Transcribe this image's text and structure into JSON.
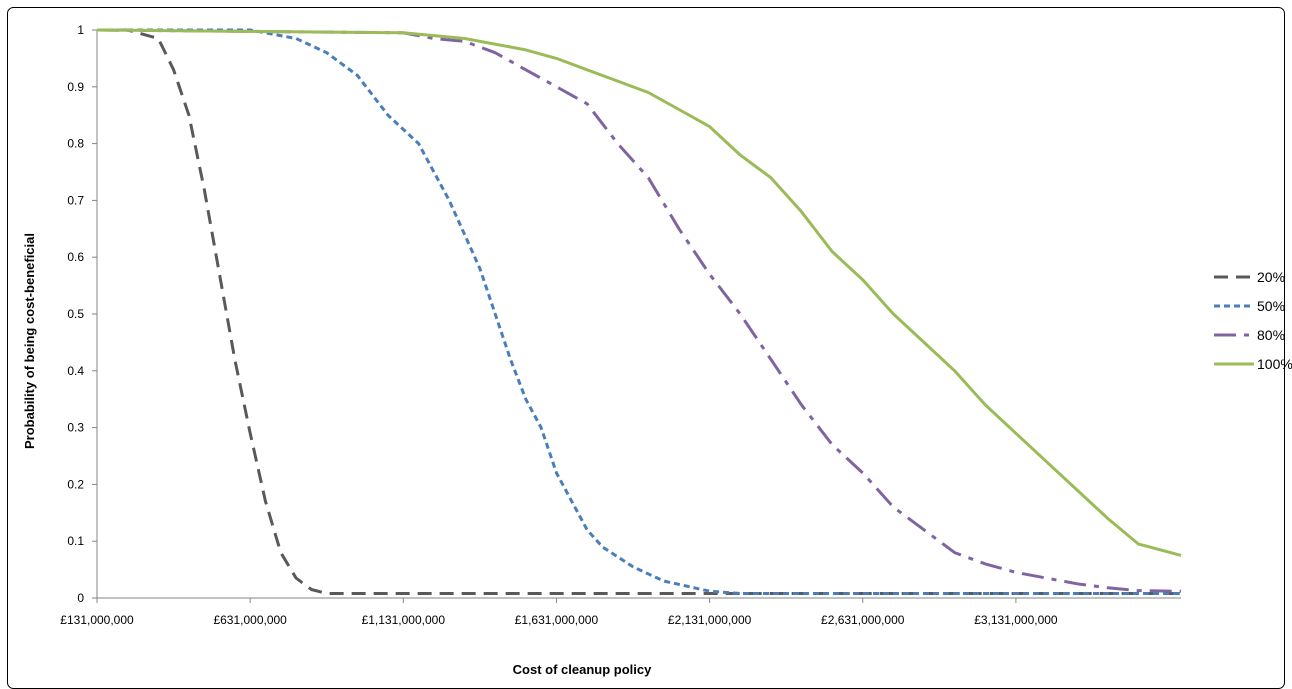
{
  "chart_data": {
    "type": "line",
    "title": "",
    "xlabel": "Cost of cleanup policy",
    "ylabel": "Probability of being cost-beneficial",
    "xlim": [
      131000000,
      3670000000
    ],
    "ylim": [
      0,
      1
    ],
    "x_ticks": [
      131000000,
      631000000,
      1131000000,
      1631000000,
      2131000000,
      2631000000,
      3131000000
    ],
    "x_tick_labels": [
      "£131,000,000",
      "£631,000,000",
      "£1,131,000,000",
      "£1,631,000,000",
      "£2,131,000,000",
      "£2,631,000,000",
      "£3,131,000,000"
    ],
    "y_ticks": [
      0,
      0.1,
      0.2,
      0.3,
      0.4,
      0.5,
      0.6,
      0.7,
      0.8,
      0.9,
      1
    ],
    "y_tick_labels": [
      "0",
      "0.1",
      "0.2",
      "0.3",
      "0.4",
      "0.5",
      "0.6",
      "0.7",
      "0.8",
      "0.9",
      "1"
    ],
    "grid": false,
    "legend_position": "right",
    "series": [
      {
        "name": "20%",
        "color": "#595959",
        "dash": "long-dash",
        "x": [
          131000000,
          231000000,
          331000000,
          381000000,
          431000000,
          481000000,
          531000000,
          581000000,
          631000000,
          681000000,
          731000000,
          781000000,
          831000000,
          881000000,
          1131000000,
          1631000000,
          2131000000,
          2631000000,
          3131000000,
          3670000000
        ],
        "y": [
          1.0,
          1.0,
          0.985,
          0.93,
          0.85,
          0.72,
          0.57,
          0.42,
          0.29,
          0.17,
          0.08,
          0.035,
          0.015,
          0.008,
          0.008,
          0.008,
          0.008,
          0.008,
          0.008,
          0.008
        ]
      },
      {
        "name": "50%",
        "color": "#4a7ebb",
        "dash": "short-dash",
        "x": [
          131000000,
          631000000,
          781000000,
          881000000,
          981000000,
          1081000000,
          1181000000,
          1231000000,
          1281000000,
          1331000000,
          1381000000,
          1431000000,
          1481000000,
          1531000000,
          1581000000,
          1631000000,
          1681000000,
          1731000000,
          1781000000,
          1881000000,
          1981000000,
          2081000000,
          2131000000,
          2231000000,
          2631000000,
          3131000000,
          3670000000
        ],
        "y": [
          1.0,
          1.0,
          0.985,
          0.96,
          0.92,
          0.85,
          0.8,
          0.75,
          0.7,
          0.64,
          0.58,
          0.5,
          0.42,
          0.35,
          0.3,
          0.22,
          0.17,
          0.12,
          0.09,
          0.055,
          0.03,
          0.018,
          0.012,
          0.008,
          0.008,
          0.008,
          0.008
        ]
      },
      {
        "name": "80%",
        "color": "#8064a2",
        "dash": "dash-dot",
        "x": [
          131000000,
          1131000000,
          1231000000,
          1331000000,
          1431000000,
          1531000000,
          1631000000,
          1731000000,
          1831000000,
          1931000000,
          2031000000,
          2131000000,
          2231000000,
          2331000000,
          2431000000,
          2531000000,
          2631000000,
          2731000000,
          2831000000,
          2931000000,
          3031000000,
          3131000000,
          3231000000,
          3331000000,
          3431000000,
          3531000000,
          3670000000
        ],
        "y": [
          1.0,
          0.995,
          0.985,
          0.98,
          0.96,
          0.93,
          0.9,
          0.87,
          0.8,
          0.74,
          0.65,
          0.57,
          0.5,
          0.42,
          0.34,
          0.27,
          0.22,
          0.16,
          0.12,
          0.08,
          0.06,
          0.045,
          0.035,
          0.025,
          0.018,
          0.013,
          0.012
        ]
      },
      {
        "name": "100%",
        "color": "#9bbb59",
        "dash": "solid",
        "x": [
          131000000,
          1131000000,
          1331000000,
          1531000000,
          1631000000,
          1731000000,
          1831000000,
          1931000000,
          2031000000,
          2131000000,
          2231000000,
          2331000000,
          2431000000,
          2531000000,
          2631000000,
          2731000000,
          2831000000,
          2931000000,
          3031000000,
          3131000000,
          3231000000,
          3331000000,
          3431000000,
          3531000000,
          3670000000
        ],
        "y": [
          1.0,
          0.995,
          0.985,
          0.965,
          0.95,
          0.93,
          0.91,
          0.89,
          0.86,
          0.83,
          0.78,
          0.74,
          0.68,
          0.61,
          0.56,
          0.5,
          0.45,
          0.4,
          0.34,
          0.29,
          0.24,
          0.19,
          0.14,
          0.095,
          0.075
        ]
      }
    ]
  }
}
